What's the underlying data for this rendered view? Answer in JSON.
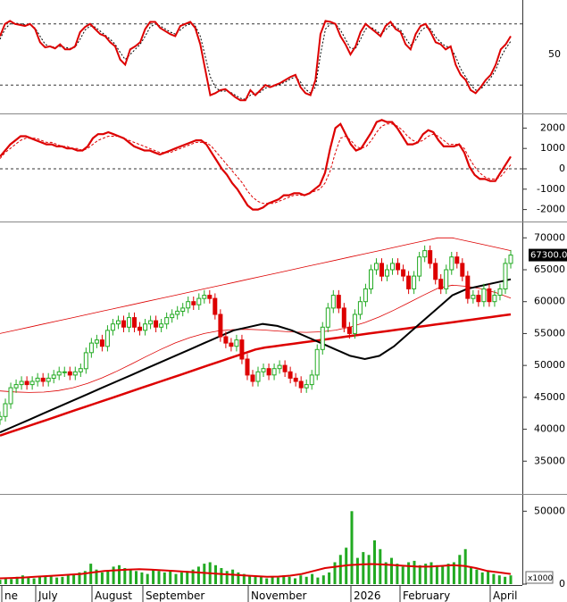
{
  "chart_data": [
    {
      "type": "line",
      "panel": "stochastic",
      "ylim": [
        0,
        100
      ],
      "y_ticks": [
        "50"
      ],
      "reference_lines": [
        20,
        80
      ],
      "series": [
        {
          "values": [
            68,
            80,
            83,
            80,
            79,
            78,
            80,
            75,
            62,
            57,
            58,
            56,
            60,
            55,
            55,
            58,
            72,
            77,
            80,
            75,
            70,
            68,
            62,
            58,
            45,
            40,
            55,
            58,
            62,
            75,
            82,
            82,
            76,
            73,
            70,
            68,
            78,
            80,
            82,
            76,
            60,
            35,
            10,
            12,
            15,
            16,
            12,
            8,
            5,
            5,
            15,
            10,
            15,
            20,
            18,
            20,
            22,
            25,
            28,
            30,
            18,
            12,
            10,
            25,
            70,
            83,
            82,
            80,
            68,
            60,
            50,
            58,
            72,
            80,
            76,
            72,
            68,
            78,
            82,
            75,
            72,
            60,
            55,
            70,
            78,
            80,
            72,
            62,
            60,
            55,
            58,
            40,
            30,
            25,
            15,
            12,
            18,
            25,
            30,
            40,
            55,
            60,
            68
          ],
          "color": "#dd0000"
        },
        {
          "values": [
            65,
            75,
            80,
            81,
            80,
            79,
            79,
            76,
            68,
            60,
            58,
            57,
            58,
            57,
            56,
            57,
            65,
            74,
            78,
            77,
            73,
            69,
            65,
            60,
            52,
            45,
            50,
            55,
            60,
            68,
            77,
            80,
            78,
            75,
            72,
            70,
            74,
            78,
            80,
            78,
            68,
            48,
            28,
            18,
            14,
            14,
            13,
            10,
            7,
            6,
            10,
            12,
            13,
            17,
            18,
            19,
            21,
            23,
            26,
            28,
            23,
            16,
            12,
            18,
            50,
            75,
            80,
            80,
            74,
            65,
            56,
            56,
            65,
            75,
            77,
            74,
            70,
            74,
            79,
            77,
            74,
            66,
            59,
            64,
            73,
            77,
            75,
            67,
            62,
            58,
            57,
            48,
            36,
            28,
            20,
            15,
            16,
            21,
            27,
            35,
            47,
            56,
            63
          ],
          "color": "#000000"
        }
      ]
    },
    {
      "type": "line",
      "panel": "macd",
      "ylim": [
        -2500,
        2500
      ],
      "y_ticks": [
        "2000",
        "1000",
        "0",
        "-1000",
        "-2000"
      ],
      "reference_lines": [
        0
      ],
      "series": [
        {
          "values": [
            600,
            900,
            1200,
            1400,
            1600,
            1600,
            1500,
            1400,
            1300,
            1200,
            1200,
            1100,
            1100,
            1000,
            1000,
            900,
            900,
            1100,
            1500,
            1700,
            1700,
            1800,
            1700,
            1600,
            1500,
            1300,
            1100,
            1000,
            900,
            900,
            800,
            700,
            800,
            900,
            1000,
            1100,
            1200,
            1300,
            1400,
            1400,
            1200,
            800,
            400,
            0,
            -300,
            -700,
            -1000,
            -1400,
            -1800,
            -2000,
            -2000,
            -1900,
            -1700,
            -1600,
            -1500,
            -1300,
            -1300,
            -1200,
            -1200,
            -1300,
            -1200,
            -1000,
            -800,
            -200,
            1000,
            2000,
            2200,
            1700,
            1200,
            900,
            1000,
            1400,
            1800,
            2300,
            2400,
            2300,
            2300,
            2000,
            1600,
            1200,
            1200,
            1300,
            1700,
            1900,
            1800,
            1400,
            1100,
            1100,
            1100,
            1200,
            800,
            100,
            -300,
            -500,
            -500,
            -600,
            -600,
            -200,
            200,
            600
          ],
          "color": "#dd0000"
        },
        {
          "values": [
            500,
            800,
            1000,
            1200,
            1400,
            1500,
            1500,
            1500,
            1400,
            1300,
            1300,
            1200,
            1100,
            1100,
            1000,
            1000,
            900,
            1000,
            1200,
            1400,
            1500,
            1600,
            1600,
            1600,
            1500,
            1400,
            1300,
            1200,
            1100,
            1000,
            900,
            800,
            800,
            800,
            900,
            1000,
            1100,
            1200,
            1300,
            1300,
            1300,
            1100,
            800,
            500,
            200,
            -100,
            -400,
            -700,
            -1100,
            -1400,
            -1600,
            -1700,
            -1700,
            -1700,
            -1600,
            -1500,
            -1400,
            -1300,
            -1300,
            -1300,
            -1200,
            -1100,
            -1000,
            -700,
            -100,
            800,
            1500,
            1600,
            1400,
            1100,
            1000,
            1100,
            1400,
            1800,
            2100,
            2200,
            2200,
            2100,
            1900,
            1600,
            1400,
            1300,
            1400,
            1600,
            1700,
            1600,
            1400,
            1200,
            1200,
            1200,
            1000,
            500,
            100,
            -200,
            -400,
            -500,
            -500,
            -400,
            -100,
            200
          ],
          "color": "#dd0000",
          "style": "dashed"
        }
      ]
    },
    {
      "type": "candlestick",
      "panel": "price",
      "ylim": [
        30000,
        72000
      ],
      "y_ticks": [
        "70000",
        "65000",
        "60000",
        "55000",
        "50000",
        "45000",
        "40000",
        "35000"
      ],
      "last_price_label": "67300.00",
      "close": [
        42000,
        44000,
        46500,
        47000,
        47500,
        47000,
        47500,
        48000,
        47500,
        48000,
        48500,
        49000,
        49000,
        48500,
        49000,
        49500,
        52000,
        53500,
        54000,
        53000,
        55500,
        56500,
        57000,
        56000,
        57500,
        56000,
        55500,
        56500,
        57000,
        56000,
        56500,
        57500,
        58000,
        58500,
        59000,
        60000,
        59500,
        60500,
        61000,
        60500,
        58000,
        54500,
        53500,
        53000,
        54000,
        51000,
        48500,
        47500,
        49000,
        49500,
        48500,
        49500,
        50000,
        49000,
        48000,
        47500,
        46500,
        47000,
        48500,
        52500,
        56000,
        59000,
        61000,
        59000,
        56000,
        55000,
        58000,
        60000,
        62000,
        65000,
        66000,
        64000,
        65000,
        66000,
        65000,
        64000,
        62000,
        64000,
        67000,
        68000,
        66000,
        63500,
        62000,
        65000,
        67000,
        66000,
        64000,
        60500,
        61000,
        60000,
        62000,
        60000,
        61000,
        62000,
        66000,
        67300
      ],
      "bollinger_upper": [
        55000,
        55500,
        56000,
        56500,
        57000,
        57500,
        58000,
        58500,
        59000,
        59500,
        60000,
        60500,
        61000,
        61500,
        62000,
        62500,
        63000,
        63500,
        64000,
        64500,
        65000,
        65500,
        66000,
        66500,
        67000,
        67500,
        68000,
        68500,
        69000,
        69500,
        70000,
        70000,
        69500,
        69000,
        68500,
        68000
      ],
      "ma_long": [
        39000,
        39500,
        40000,
        40500,
        41000,
        41500,
        42000,
        42500,
        43000,
        43500,
        44000,
        44500,
        45000,
        45500,
        46000,
        46500,
        47000,
        47500,
        48000,
        48500,
        49000,
        49500,
        50000,
        50500,
        51000,
        51500,
        52000,
        52500,
        52800,
        53000,
        53200,
        53400,
        53600,
        53800,
        54000,
        54200,
        54400,
        54600,
        54800,
        55000,
        55200,
        55400,
        55600,
        55800,
        56000,
        56200,
        56400,
        56600,
        56800,
        57000,
        57200,
        57400,
        57600,
        57800,
        58000
      ],
      "ma_mid": [
        39500,
        40500,
        41500,
        42500,
        43500,
        44500,
        45500,
        46500,
        47500,
        48500,
        49500,
        50500,
        51500,
        52500,
        53500,
        54500,
        55500,
        56000,
        56500,
        56200,
        55500,
        54500,
        53500,
        52500,
        51500,
        51000,
        51500,
        53000,
        55000,
        57000,
        59000,
        61000,
        62000,
        62500,
        63000,
        63500
      ],
      "series": [
        {
          "name": "",
          "color": "#dd0000"
        },
        {
          "name": "",
          "color": "#000000"
        }
      ]
    },
    {
      "type": "bar",
      "panel": "volume",
      "ylim": [
        0,
        60000
      ],
      "y_ticks": [
        "50000",
        "0"
      ],
      "unit_label": "x1000",
      "values": [
        3000,
        4000,
        3500,
        5000,
        6000,
        4500,
        4000,
        5500,
        5000,
        6000,
        4500,
        5000,
        6500,
        7000,
        8000,
        9000,
        14000,
        10000,
        8000,
        9000,
        12000,
        13000,
        11000,
        10000,
        9000,
        8000,
        7000,
        10000,
        9000,
        8000,
        9000,
        7000,
        8000,
        9000,
        10000,
        12000,
        14000,
        15000,
        13000,
        11000,
        9000,
        10000,
        8000,
        7000,
        6000,
        5000,
        5500,
        4000,
        5000,
        4500,
        6000,
        5000,
        4000,
        6000,
        5000,
        7000,
        4500,
        6000,
        8000,
        15000,
        20000,
        25000,
        50000,
        18000,
        22000,
        20000,
        30000,
        24000,
        15000,
        18000,
        14000,
        12000,
        15000,
        16000,
        13000,
        14000,
        15000,
        13000,
        12000,
        14000,
        15000,
        20000,
        24000,
        12000,
        10000,
        8000,
        9000,
        7000,
        6000,
        5000,
        6000
      ],
      "ma": [
        4000,
        4200,
        4500,
        5000,
        5500,
        6000,
        6500,
        7000,
        8000,
        9000,
        9500,
        10000,
        10200,
        10000,
        9500,
        9000,
        8500,
        8000,
        7500,
        7000,
        6500,
        6000,
        5500,
        5000,
        5200,
        5800,
        7000,
        9000,
        11000,
        12000,
        13000,
        13500,
        13800,
        13500,
        13000,
        12500,
        12000,
        12000,
        12500,
        13000,
        12500,
        11000,
        9000,
        8000,
        7000
      ],
      "colors": {
        "bar": "#22aa22",
        "ma": "#dd0000"
      }
    }
  ],
  "x_axis": {
    "labels": [
      "ne",
      "July",
      "August",
      "September",
      "November",
      "2026",
      "February",
      "April"
    ]
  }
}
